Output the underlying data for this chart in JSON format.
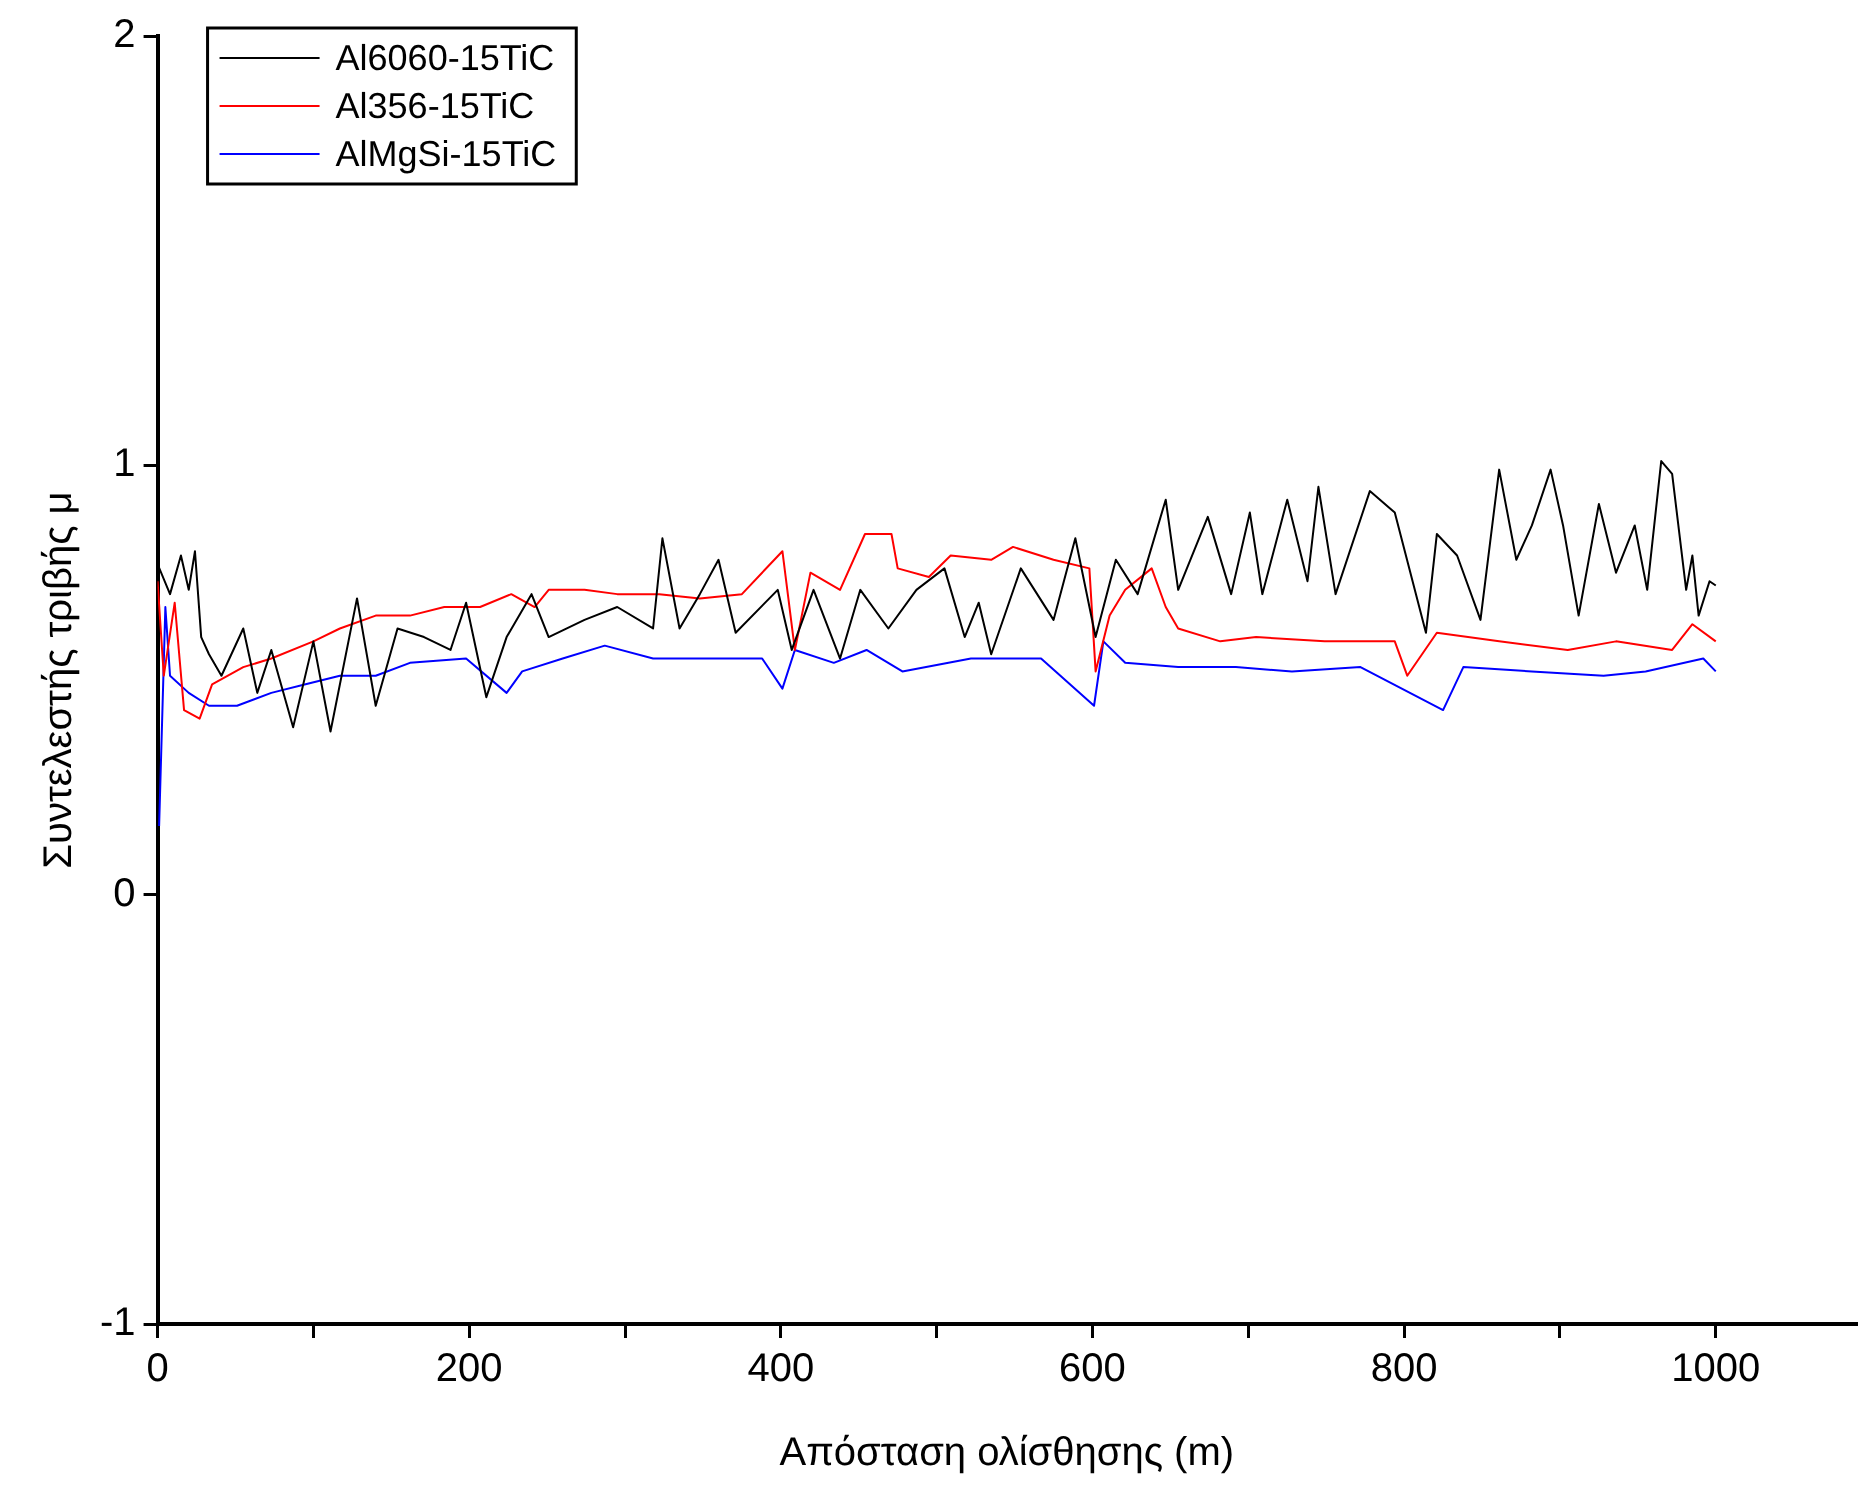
{
  "chart_data": {
    "type": "line",
    "xlabel": "Απόσταση ολίσθησης (m)",
    "ylabel": "Συντελεστής τριβής μ",
    "xlim": [
      0,
      1090
    ],
    "ylim": [
      -1,
      2
    ],
    "xticks": [
      0,
      {
        "value": 100,
        "label": null
      },
      200,
      {
        "value": 300,
        "label": null
      },
      400,
      {
        "value": 500,
        "label": null
      },
      600,
      {
        "value": 700,
        "label": null
      },
      800,
      {
        "value": 900,
        "label": null
      },
      1000
    ],
    "yticks": [
      -1,
      0,
      1,
      2
    ],
    "grid": false,
    "legend": "top left",
    "marker": "none",
    "line_style": "solid",
    "series": [
      {
        "name": "Al6060-15TiC",
        "color": "#000000",
        "x": [
          0,
          8,
          15,
          20,
          24,
          28,
          33,
          41,
          55,
          64,
          73,
          87,
          100,
          111,
          128,
          140,
          154,
          171,
          188,
          198,
          211,
          224,
          240,
          251,
          274,
          295,
          318,
          324,
          335,
          348,
          360,
          371,
          398,
          407,
          421,
          438,
          451,
          469,
          487,
          505,
          518,
          527,
          535,
          554,
          575,
          589,
          602,
          615,
          629,
          647,
          655,
          674,
          689,
          701,
          709,
          725,
          738,
          745,
          756,
          778,
          794,
          814,
          821,
          834,
          849,
          861,
          872,
          882,
          894,
          902,
          912,
          925,
          936,
          948,
          956,
          965,
          972,
          981,
          985,
          989,
          996,
          1000
        ],
        "values": [
          0.77,
          0.7,
          0.79,
          0.71,
          0.8,
          0.6,
          0.56,
          0.51,
          0.62,
          0.47,
          0.57,
          0.39,
          0.59,
          0.38,
          0.69,
          0.44,
          0.62,
          0.6,
          0.57,
          0.68,
          0.46,
          0.6,
          0.7,
          0.6,
          0.64,
          0.67,
          0.62,
          0.83,
          0.62,
          0.7,
          0.78,
          0.61,
          0.71,
          0.57,
          0.71,
          0.55,
          0.71,
          0.62,
          0.71,
          0.76,
          0.6,
          0.68,
          0.56,
          0.76,
          0.64,
          0.83,
          0.6,
          0.78,
          0.7,
          0.92,
          0.71,
          0.88,
          0.7,
          0.89,
          0.7,
          0.92,
          0.73,
          0.95,
          0.7,
          0.94,
          0.89,
          0.61,
          0.84,
          0.79,
          0.64,
          0.99,
          0.78,
          0.86,
          0.99,
          0.86,
          0.65,
          0.91,
          0.75,
          0.86,
          0.71,
          1.01,
          0.98,
          0.71,
          0.79,
          0.65,
          0.73,
          0.72
        ]
      },
      {
        "name": "Al356-15TiC",
        "color": "#ff0000",
        "x": [
          0,
          4,
          11,
          17,
          27,
          35,
          55,
          73,
          100,
          117,
          140,
          162,
          184,
          207,
          227,
          242,
          251,
          274,
          295,
          322,
          348,
          375,
          401,
          409,
          419,
          438,
          454,
          471,
          475,
          495,
          509,
          535,
          549,
          575,
          598,
          602,
          611,
          621,
          638,
          647,
          655,
          682,
          705,
          749,
          794,
          802,
          821,
          861,
          905,
          936,
          972,
          985,
          1000
        ],
        "values": [
          0.73,
          0.51,
          0.68,
          0.43,
          0.41,
          0.49,
          0.53,
          0.55,
          0.59,
          0.62,
          0.65,
          0.65,
          0.67,
          0.67,
          0.7,
          0.67,
          0.71,
          0.71,
          0.7,
          0.7,
          0.69,
          0.7,
          0.8,
          0.57,
          0.75,
          0.71,
          0.84,
          0.84,
          0.76,
          0.74,
          0.79,
          0.78,
          0.81,
          0.78,
          0.76,
          0.52,
          0.65,
          0.71,
          0.76,
          0.67,
          0.62,
          0.59,
          0.6,
          0.59,
          0.59,
          0.51,
          0.61,
          0.59,
          0.57,
          0.59,
          0.57,
          0.63,
          0.59
        ]
      },
      {
        "name": "AlMgSi-15TiC",
        "color": "#0000ff",
        "x": [
          1,
          5,
          8,
          20,
          33,
          51,
          73,
          95,
          117,
          140,
          162,
          198,
          224,
          234,
          260,
          287,
          318,
          358,
          388,
          401,
          409,
          434,
          455,
          478,
          522,
          567,
          601,
          607,
          621,
          655,
          692,
          728,
          772,
          825,
          838,
          882,
          928,
          955,
          992,
          1000
        ],
        "values": [
          0.16,
          0.67,
          0.51,
          0.47,
          0.44,
          0.44,
          0.47,
          0.49,
          0.51,
          0.51,
          0.54,
          0.55,
          0.47,
          0.52,
          0.55,
          0.58,
          0.55,
          0.55,
          0.55,
          0.48,
          0.57,
          0.54,
          0.57,
          0.52,
          0.55,
          0.55,
          0.44,
          0.59,
          0.54,
          0.53,
          0.53,
          0.52,
          0.53,
          0.43,
          0.53,
          0.52,
          0.51,
          0.52,
          0.55,
          0.52
        ]
      }
    ]
  }
}
